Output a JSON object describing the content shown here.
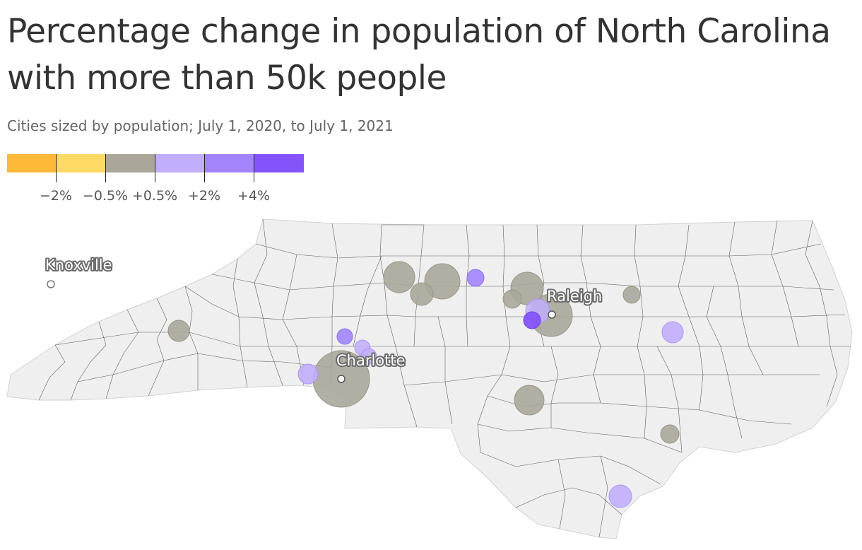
{
  "title": "Percentage change in population of North Carolina with more than 50k people",
  "subtitle": "Cities sized by population; July 1, 2020, to July 1, 2021",
  "legend": {
    "colors": [
      "#ffb938",
      "#ffd966",
      "#aaa69a",
      "#c1aefc",
      "#a285fb",
      "#8454fa"
    ],
    "tick_labels": [
      "−2%",
      "−0.5%",
      "+0.5%",
      "+2%",
      "+4%"
    ]
  },
  "map": {
    "labels": {
      "knoxville": "Knoxville",
      "charlotte": "Charlotte",
      "raleigh": "Raleigh"
    },
    "bubble_colors": {
      "stable": "#aaa69a",
      "light_purple": "#c1aefc",
      "mid_purple": "#a285fb",
      "dark_purple": "#8454fa"
    }
  }
}
